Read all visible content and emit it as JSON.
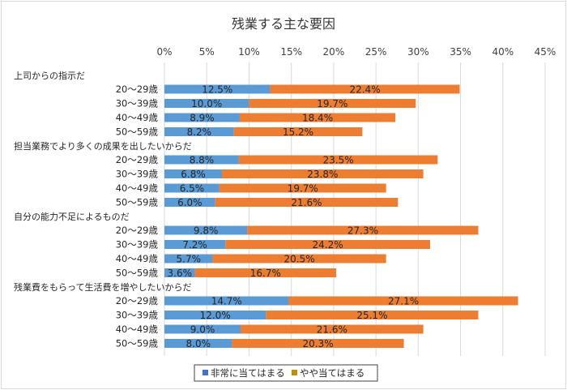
{
  "chart_data": {
    "type": "bar",
    "orientation": "horizontal",
    "stacked": true,
    "title": "残業する主な要因",
    "xlim": [
      0,
      45
    ],
    "x_ticks": [
      "0%",
      "5%",
      "10%",
      "15%",
      "20%",
      "25%",
      "30%",
      "35%",
      "40%",
      "45%"
    ],
    "gridlines": true,
    "legend_position": "bottom",
    "colors": {
      "series1": "#5b9bd5",
      "series2": "#ed7d31"
    },
    "series": [
      {
        "name": "非常に当てはまる",
        "legend_color": "#4472c4"
      },
      {
        "name": "やや当てはまる",
        "legend_color": "#bf9000"
      }
    ],
    "groups": [
      {
        "label": "上司からの指示だ",
        "rows": [
          {
            "label": "20～29歳",
            "v1": 12.5,
            "v2": 22.4,
            "l1": "12.5%",
            "l2": "22.4%"
          },
          {
            "label": "30～39歳",
            "v1": 10.0,
            "v2": 19.7,
            "l1": "10.0%",
            "l2": "19.7%"
          },
          {
            "label": "40～49歳",
            "v1": 8.9,
            "v2": 18.4,
            "l1": "8.9%",
            "l2": "18.4%"
          },
          {
            "label": "50～59歳",
            "v1": 8.2,
            "v2": 15.2,
            "l1": "8.2%",
            "l2": "15.2%"
          }
        ]
      },
      {
        "label": "担当業務でより多くの成果を出したいからだ",
        "rows": [
          {
            "label": "20～29歳",
            "v1": 8.8,
            "v2": 23.5,
            "l1": "8.8%",
            "l2": "23.5%"
          },
          {
            "label": "30～39歳",
            "v1": 6.8,
            "v2": 23.8,
            "l1": "6.8%",
            "l2": "23.8%"
          },
          {
            "label": "40～49歳",
            "v1": 6.5,
            "v2": 19.7,
            "l1": "6.5%",
            "l2": "19.7%"
          },
          {
            "label": "50～59歳",
            "v1": 6.0,
            "v2": 21.6,
            "l1": "6.0%",
            "l2": "21.6%"
          }
        ]
      },
      {
        "label": "自分の能力不足によるものだ",
        "rows": [
          {
            "label": "20～29歳",
            "v1": 9.8,
            "v2": 27.3,
            "l1": "9.8%",
            "l2": "27.3%"
          },
          {
            "label": "30～39歳",
            "v1": 7.2,
            "v2": 24.2,
            "l1": "7.2%",
            "l2": "24.2%"
          },
          {
            "label": "40～49歳",
            "v1": 5.7,
            "v2": 20.5,
            "l1": "5.7%",
            "l2": "20.5%"
          },
          {
            "label": "50～59歳",
            "v1": 3.6,
            "v2": 16.7,
            "l1": "3.6%",
            "l2": "16.7%"
          }
        ]
      },
      {
        "label": "残業費をもらって生活費を増やしたいからだ",
        "rows": [
          {
            "label": "20～29歳",
            "v1": 14.7,
            "v2": 27.1,
            "l1": "14.7%",
            "l2": "27.1%"
          },
          {
            "label": "30～39歳",
            "v1": 12.0,
            "v2": 25.1,
            "l1": "12.0%",
            "l2": "25.1%"
          },
          {
            "label": "40～49歳",
            "v1": 9.0,
            "v2": 21.6,
            "l1": "9.0%",
            "l2": "21.6%"
          },
          {
            "label": "50～59歳",
            "v1": 8.0,
            "v2": 20.3,
            "l1": "8.0%",
            "l2": "20.3%"
          }
        ]
      }
    ]
  }
}
